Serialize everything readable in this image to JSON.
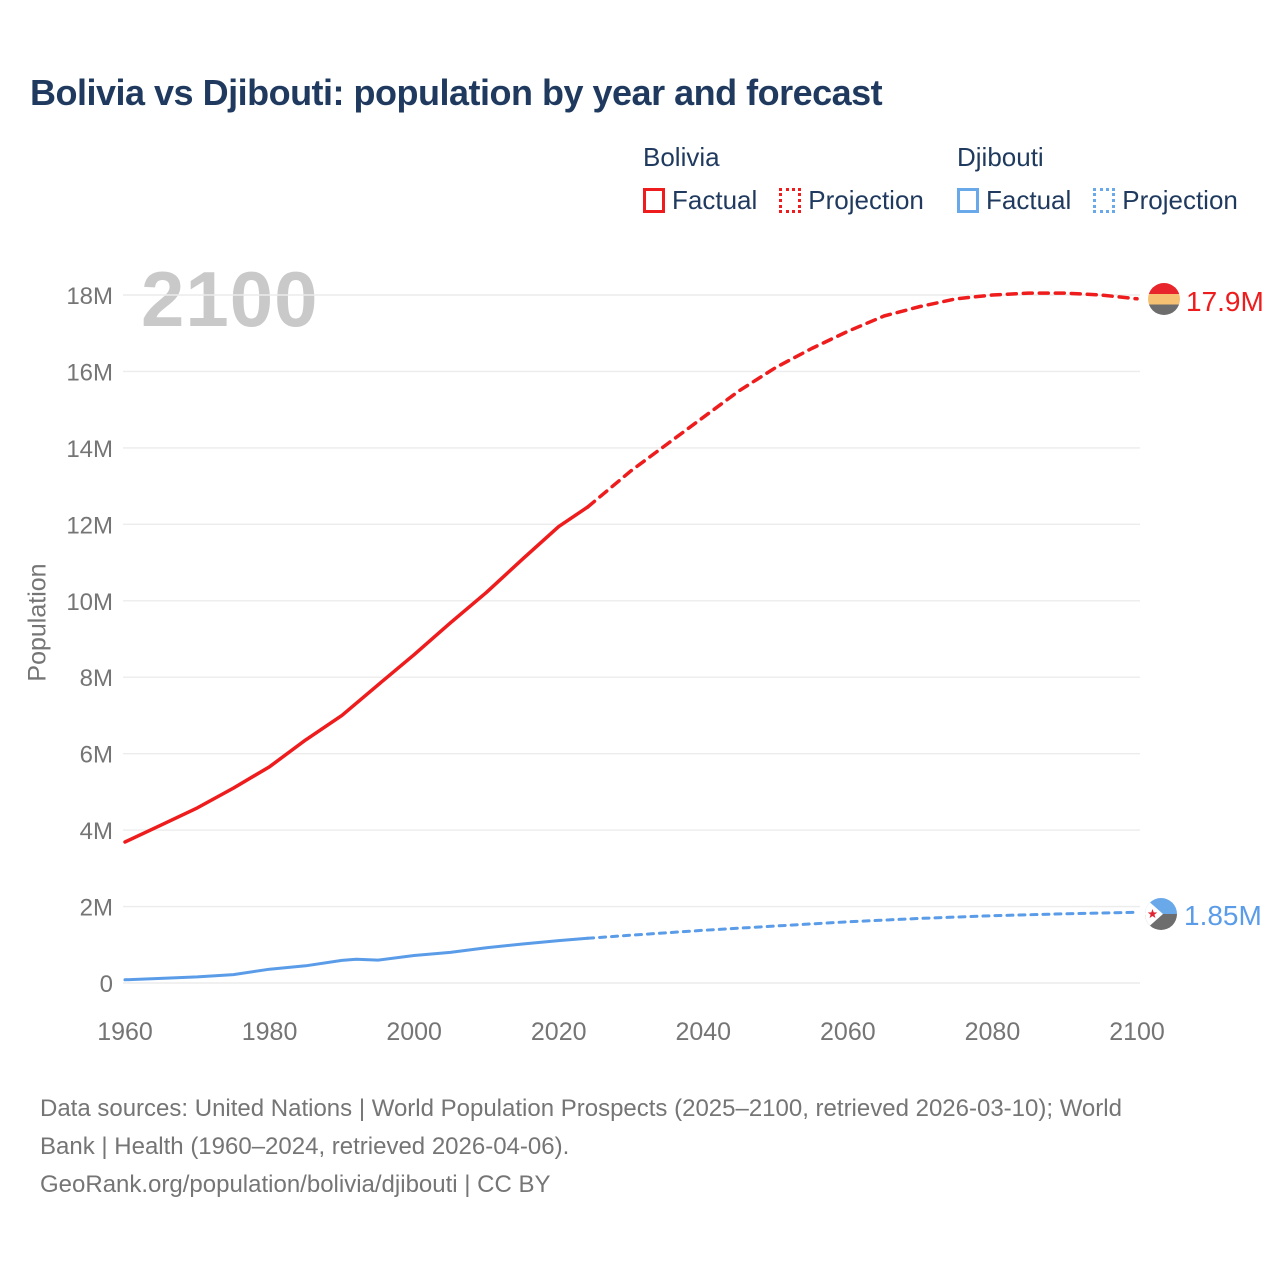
{
  "title": "Bolivia vs Djibouti: population by year and forecast",
  "watermark": "2100",
  "colors": {
    "bolivia": "#ee1c1c",
    "djibouti": "#5b9ce8",
    "title_text": "#1f3a5e",
    "axis_text": "#757575",
    "gridline": "#ececec",
    "watermark": "#c9c9c9"
  },
  "legend": {
    "groups": [
      {
        "name": "Bolivia",
        "color": "#ee1c1c",
        "items": [
          {
            "label": "Factual",
            "style": "solid"
          },
          {
            "label": "Projection",
            "style": "dotted"
          }
        ]
      },
      {
        "name": "Djibouti",
        "color": "#6aa9e9",
        "items": [
          {
            "label": "Factual",
            "style": "solid"
          },
          {
            "label": "Projection",
            "style": "dotted"
          }
        ]
      }
    ]
  },
  "chart_data": {
    "type": "line",
    "title": "Bolivia vs Djibouti: population by year and forecast",
    "xlabel": "",
    "ylabel": "Population",
    "unit": "millions",
    "xlim": [
      1960,
      2100
    ],
    "ylim_millions": [
      0,
      18
    ],
    "grid": "horizontal",
    "y_ticks": [
      {
        "value": 0,
        "label": "0"
      },
      {
        "value": 2,
        "label": "2M"
      },
      {
        "value": 4,
        "label": "4M"
      },
      {
        "value": 6,
        "label": "6M"
      },
      {
        "value": 8,
        "label": "8M"
      },
      {
        "value": 10,
        "label": "10M"
      },
      {
        "value": 12,
        "label": "12M"
      },
      {
        "value": 14,
        "label": "14M"
      },
      {
        "value": 16,
        "label": "16M"
      },
      {
        "value": 18,
        "label": "18M"
      }
    ],
    "x_ticks": [
      {
        "value": 1960,
        "label": "1960"
      },
      {
        "value": 1980,
        "label": "1980"
      },
      {
        "value": 2000,
        "label": "2000"
      },
      {
        "value": 2020,
        "label": "2020"
      },
      {
        "value": 2040,
        "label": "2040"
      },
      {
        "value": 2060,
        "label": "2060"
      },
      {
        "value": 2080,
        "label": "2080"
      },
      {
        "value": 2100,
        "label": "2100"
      }
    ],
    "series": [
      {
        "name": "Bolivia Factual",
        "country": "Bolivia",
        "kind": "factual",
        "color": "#ee1c1c",
        "dash": "none",
        "width": 3.5,
        "x": [
          1960,
          1965,
          1970,
          1975,
          1980,
          1985,
          1990,
          1995,
          2000,
          2005,
          2010,
          2015,
          2020,
          2024
        ],
        "values": [
          3.69,
          4.13,
          4.58,
          5.1,
          5.66,
          6.36,
          7.0,
          7.8,
          8.59,
          9.42,
          10.22,
          11.09,
          11.94,
          12.45
        ]
      },
      {
        "name": "Bolivia Projection",
        "country": "Bolivia",
        "kind": "projection",
        "color": "#ee1c1c",
        "dash": "9 7",
        "width": 3.5,
        "x": [
          2024,
          2030,
          2035,
          2040,
          2045,
          2050,
          2055,
          2060,
          2065,
          2070,
          2075,
          2080,
          2085,
          2090,
          2095,
          2100
        ],
        "values": [
          12.45,
          13.4,
          14.1,
          14.8,
          15.5,
          16.1,
          16.6,
          17.05,
          17.45,
          17.7,
          17.9,
          18.0,
          18.05,
          18.05,
          18.0,
          17.9
        ]
      },
      {
        "name": "Djibouti Factual",
        "country": "Djibouti",
        "kind": "factual",
        "color": "#5b9ce8",
        "dash": "none",
        "width": 3,
        "x": [
          1960,
          1965,
          1970,
          1975,
          1980,
          1985,
          1990,
          1992,
          1995,
          2000,
          2005,
          2010,
          2015,
          2020,
          2024
        ],
        "values": [
          0.085,
          0.12,
          0.16,
          0.22,
          0.36,
          0.45,
          0.59,
          0.62,
          0.6,
          0.72,
          0.8,
          0.92,
          1.02,
          1.11,
          1.17
        ]
      },
      {
        "name": "Djibouti Projection",
        "country": "Djibouti",
        "kind": "projection",
        "color": "#5b9ce8",
        "dash": "6 6",
        "width": 3,
        "x": [
          2024,
          2030,
          2040,
          2050,
          2060,
          2070,
          2080,
          2090,
          2100
        ],
        "values": [
          1.17,
          1.25,
          1.38,
          1.49,
          1.6,
          1.69,
          1.76,
          1.81,
          1.85
        ]
      }
    ],
    "end_labels": [
      {
        "country": "Bolivia",
        "text": "17.9M",
        "value_millions": 17.9,
        "year": 2100
      },
      {
        "country": "Djibouti",
        "text": "1.85M",
        "value_millions": 1.85,
        "year": 2100
      }
    ]
  },
  "footer": {
    "lines": [
      "Data sources: United Nations | World Population Prospects (2025–2100, retrieved 2026-03-10); World",
      "Bank | Health (1960–2024, retrieved 2026-04-06).",
      "GeoRank.org/population/bolivia/djibouti | CC BY"
    ]
  }
}
